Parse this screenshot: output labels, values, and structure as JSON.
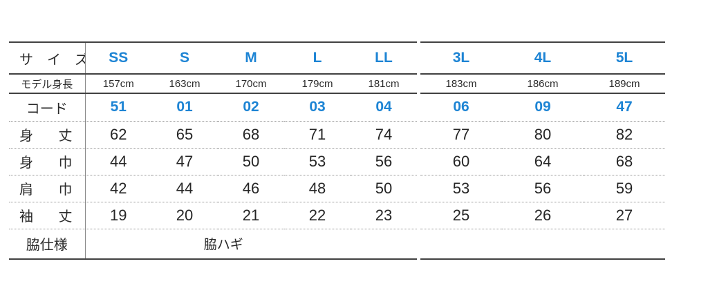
{
  "colors": {
    "accent_blue": "#1d84d4",
    "text": "#262626",
    "solid_line": "#414141",
    "dotted_line": "#979797"
  },
  "chart_data": {
    "type": "table",
    "unit": "cm",
    "row_labels": {
      "size": "サ　イ　ズ",
      "model_height": "モデル身長",
      "code": "コード",
      "body_length": "身　丈",
      "body_width": "身　巾",
      "shoulder_width": "肩　巾",
      "sleeve_length": "袖　丈",
      "side_spec": "脇仕様"
    },
    "sizes": [
      "SS",
      "S",
      "M",
      "L",
      "LL",
      "3L",
      "4L",
      "5L"
    ],
    "model_heights": [
      "157cm",
      "163cm",
      "170cm",
      "179cm",
      "181cm",
      "183cm",
      "186cm",
      "189cm"
    ],
    "codes": [
      "51",
      "01",
      "02",
      "03",
      "04",
      "06",
      "09",
      "47"
    ],
    "body_length": [
      "62",
      "65",
      "68",
      "71",
      "74",
      "77",
      "80",
      "82"
    ],
    "body_width": [
      "44",
      "47",
      "50",
      "53",
      "56",
      "60",
      "64",
      "68"
    ],
    "shoulder_width": [
      "42",
      "44",
      "46",
      "48",
      "50",
      "53",
      "56",
      "59"
    ],
    "sleeve_length": [
      "19",
      "20",
      "21",
      "22",
      "23",
      "25",
      "26",
      "27"
    ],
    "side_spec_value": "脇ハギ",
    "layout_hint": "columns SS-LL in left block, 3L-5L in right block"
  }
}
